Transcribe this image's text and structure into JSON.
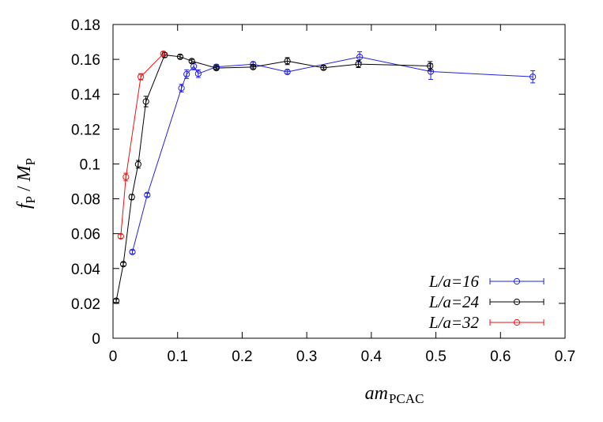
{
  "chart_data": {
    "type": "scatter",
    "title": "",
    "xlabel": {
      "main": "am",
      "sub": "PCAC"
    },
    "ylabel": {
      "main_f": "f",
      "sub_f": "P",
      "sep": " / ",
      "main_m": "M",
      "sub_m": "P"
    },
    "xlim": [
      0,
      0.7
    ],
    "ylim": [
      0,
      0.18
    ],
    "xticks": [
      "0",
      "0.1",
      "0.2",
      "0.3",
      "0.4",
      "0.5",
      "0.6",
      "0.7"
    ],
    "yticks": [
      "0",
      "0.02",
      "0.04",
      "0.06",
      "0.08",
      "0.1",
      "0.12",
      "0.14",
      "0.16",
      "0.18"
    ],
    "grid": false,
    "legend_position": "bottom-right",
    "series": [
      {
        "name": "L/a=16",
        "color": "#2222dd",
        "points": [
          {
            "x": 0.03,
            "y": 0.0495,
            "err": 0.001
          },
          {
            "x": 0.053,
            "y": 0.0822,
            "err": 0.001
          },
          {
            "x": 0.106,
            "y": 0.1435,
            "err": 0.0022
          },
          {
            "x": 0.114,
            "y": 0.1515,
            "err": 0.0025
          },
          {
            "x": 0.125,
            "y": 0.156,
            "err": 0.002
          },
          {
            "x": 0.132,
            "y": 0.1518,
            "err": 0.0022
          },
          {
            "x": 0.16,
            "y": 0.1557,
            "err": 0.0014
          },
          {
            "x": 0.217,
            "y": 0.1572,
            "err": 0.0012
          },
          {
            "x": 0.27,
            "y": 0.1528,
            "err": 0.001
          },
          {
            "x": 0.382,
            "y": 0.1614,
            "err": 0.003
          },
          {
            "x": 0.492,
            "y": 0.153,
            "err": 0.0045
          },
          {
            "x": 0.65,
            "y": 0.15,
            "err": 0.0035
          }
        ]
      },
      {
        "name": "L/a=24",
        "color": "#000000",
        "points": [
          {
            "x": 0.005,
            "y": 0.0215,
            "err": 0.001
          },
          {
            "x": 0.016,
            "y": 0.0425,
            "err": 0.001
          },
          {
            "x": 0.029,
            "y": 0.081,
            "err": 0.0015
          },
          {
            "x": 0.039,
            "y": 0.0998,
            "err": 0.0022
          },
          {
            "x": 0.051,
            "y": 0.1358,
            "err": 0.003
          },
          {
            "x": 0.08,
            "y": 0.1625,
            "err": 0.0014
          },
          {
            "x": 0.104,
            "y": 0.1615,
            "err": 0.001
          },
          {
            "x": 0.122,
            "y": 0.159,
            "err": 0.001
          },
          {
            "x": 0.16,
            "y": 0.155,
            "err": 0.001
          },
          {
            "x": 0.217,
            "y": 0.1556,
            "err": 0.001
          },
          {
            "x": 0.27,
            "y": 0.159,
            "err": 0.002
          },
          {
            "x": 0.326,
            "y": 0.1552,
            "err": 0.001
          },
          {
            "x": 0.38,
            "y": 0.1573,
            "err": 0.002
          },
          {
            "x": 0.491,
            "y": 0.1562,
            "err": 0.0025
          }
        ]
      },
      {
        "name": "L/a=32",
        "color": "#ee1111",
        "points": [
          {
            "x": 0.012,
            "y": 0.0585,
            "err": 0.0012
          },
          {
            "x": 0.02,
            "y": 0.0925,
            "err": 0.0022
          },
          {
            "x": 0.043,
            "y": 0.15,
            "err": 0.0018
          },
          {
            "x": 0.078,
            "y": 0.1632,
            "err": 0.0012
          }
        ]
      }
    ]
  }
}
